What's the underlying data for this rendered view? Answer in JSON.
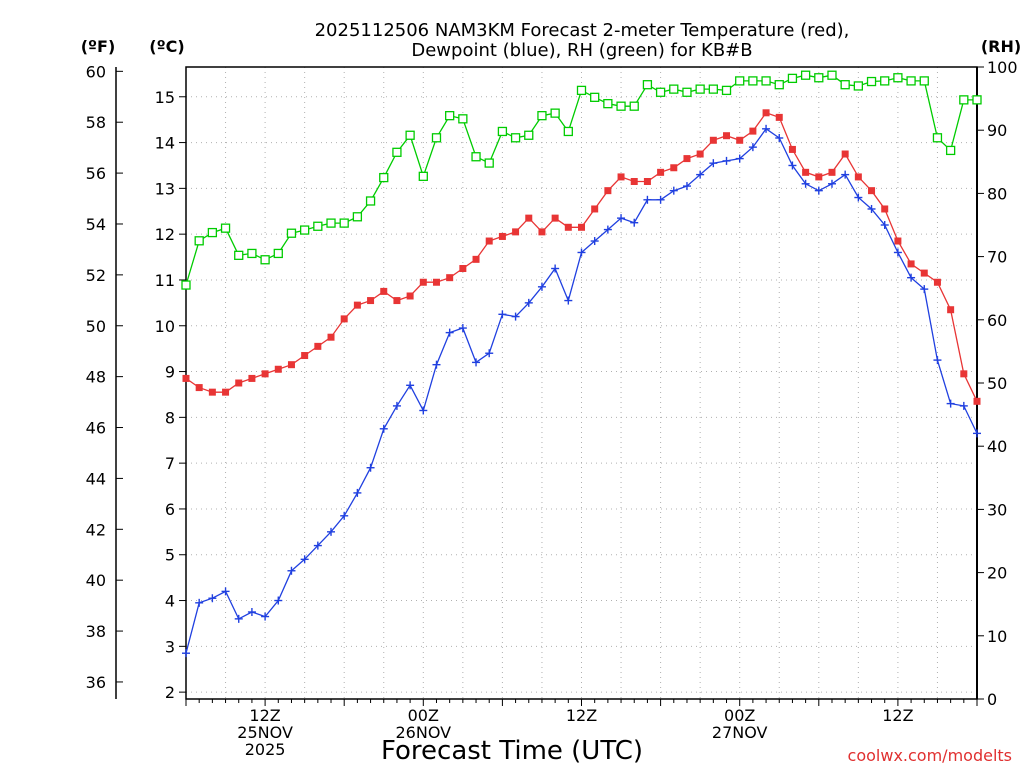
{
  "title_line1": "2025112506 NAM3KM Forecast 2-meter Temperature (red),",
  "title_line2": "Dewpoint (blue), RH (green) for KB#B",
  "unit_f": "(ºF)",
  "unit_c": "(ºC)",
  "unit_rh": "(RH)",
  "credit": "coolwx.com/modelts",
  "colors": {
    "temperature": "#e83535",
    "dewpoint": "#2040e0",
    "rh": "#00cc00",
    "grid": "#b0b0b0"
  },
  "chart_data": {
    "type": "line",
    "title": "2025112506 NAM3KM Forecast 2-meter Temperature (red), Dewpoint (blue), RH (green) for KB#B",
    "xlabel": "Forecast Time (UTC)",
    "ylabel_left_outer": "(ºF)",
    "ylabel_left_inner": "(ºC)",
    "ylabel_right": "(RH)",
    "xlim": [
      6,
      66
    ],
    "ylim_c": [
      1.85,
      15.65
    ],
    "ylim_f": [
      35.33,
      60.17
    ],
    "ylim_rh": [
      0,
      100
    ],
    "grid": true,
    "x_ticks": [
      {
        "x": 12,
        "lines": [
          "12Z",
          "25NOV",
          "2025"
        ]
      },
      {
        "x": 24,
        "lines": [
          "00Z",
          "26NOV"
        ]
      },
      {
        "x": 36,
        "lines": [
          "12Z"
        ]
      },
      {
        "x": 48,
        "lines": [
          "00Z",
          "27NOV"
        ]
      },
      {
        "x": 60,
        "lines": [
          "12Z"
        ]
      }
    ],
    "y_ticks_c": [
      2,
      3,
      4,
      5,
      6,
      7,
      8,
      9,
      10,
      11,
      12,
      13,
      14,
      15
    ],
    "y_ticks_f": [
      36,
      38,
      40,
      42,
      44,
      46,
      48,
      50,
      52,
      54,
      56,
      58,
      60
    ],
    "y_ticks_rh": [
      0,
      10,
      20,
      30,
      40,
      50,
      60,
      70,
      80,
      90,
      100
    ],
    "series": [
      {
        "name": "Temperature",
        "axis": "c",
        "color": "#e83535",
        "marker": "filled-square",
        "x": [
          6,
          7,
          8,
          9,
          10,
          11,
          12,
          13,
          14,
          15,
          16,
          17,
          18,
          19,
          20,
          21,
          22,
          23,
          24,
          25,
          26,
          27,
          28,
          29,
          30,
          31,
          32,
          33,
          34,
          35,
          36,
          37,
          38,
          39,
          40,
          41,
          42,
          43,
          44,
          45,
          46,
          47,
          48,
          49,
          50,
          51,
          52,
          53,
          54,
          55,
          56,
          57,
          58,
          59,
          60,
          61,
          62,
          63,
          64,
          65,
          66
        ],
        "values": [
          8.85,
          8.65,
          8.55,
          8.55,
          8.75,
          8.85,
          8.95,
          9.05,
          9.15,
          9.35,
          9.55,
          9.75,
          10.15,
          10.45,
          10.55,
          10.75,
          10.55,
          10.65,
          10.95,
          10.95,
          11.05,
          11.25,
          11.45,
          11.85,
          11.95,
          12.05,
          12.35,
          12.05,
          12.35,
          12.15,
          12.15,
          12.55,
          12.95,
          13.25,
          13.15,
          13.15,
          13.35,
          13.45,
          13.65,
          13.75,
          14.05,
          14.15,
          14.05,
          14.25,
          14.65,
          14.55,
          13.85,
          13.35,
          13.25,
          13.35,
          13.75,
          13.25,
          12.95,
          12.55,
          11.85,
          11.35,
          11.15,
          10.95,
          10.35,
          8.95,
          8.35
        ]
      },
      {
        "name": "Dewpoint",
        "axis": "c",
        "color": "#2040e0",
        "marker": "plus",
        "x": [
          6,
          7,
          8,
          9,
          10,
          11,
          12,
          13,
          14,
          15,
          16,
          17,
          18,
          19,
          20,
          21,
          22,
          23,
          24,
          25,
          26,
          27,
          28,
          29,
          30,
          31,
          32,
          33,
          34,
          35,
          36,
          37,
          38,
          39,
          40,
          41,
          42,
          43,
          44,
          45,
          46,
          47,
          48,
          49,
          50,
          51,
          52,
          53,
          54,
          55,
          56,
          57,
          58,
          59,
          60,
          61,
          62,
          63,
          64,
          65,
          66
        ],
        "values": [
          2.85,
          3.95,
          4.05,
          4.2,
          3.6,
          3.75,
          3.65,
          4.0,
          4.65,
          4.9,
          5.2,
          5.5,
          5.85,
          6.35,
          6.9,
          7.75,
          8.25,
          8.7,
          8.15,
          9.15,
          9.85,
          9.95,
          9.2,
          9.4,
          10.25,
          10.2,
          10.5,
          10.85,
          11.25,
          10.55,
          11.6,
          11.85,
          12.1,
          12.35,
          12.25,
          12.75,
          12.75,
          12.95,
          13.05,
          13.3,
          13.55,
          13.6,
          13.65,
          13.9,
          14.3,
          14.1,
          13.5,
          13.1,
          12.95,
          13.1,
          13.3,
          12.8,
          12.55,
          12.2,
          11.6,
          11.05,
          10.8,
          9.25,
          8.3,
          8.25,
          7.65
        ]
      },
      {
        "name": "RH",
        "axis": "rh",
        "color": "#00cc00",
        "marker": "open-square",
        "x": [
          6,
          7,
          8,
          9,
          10,
          11,
          12,
          13,
          14,
          15,
          16,
          17,
          18,
          19,
          20,
          21,
          22,
          23,
          24,
          25,
          26,
          27,
          28,
          29,
          30,
          31,
          32,
          33,
          34,
          35,
          36,
          37,
          38,
          39,
          40,
          41,
          42,
          43,
          44,
          45,
          46,
          47,
          48,
          49,
          50,
          51,
          52,
          53,
          54,
          55,
          56,
          57,
          58,
          59,
          60,
          61,
          62,
          63,
          64,
          65,
          66
        ],
        "values": [
          65.5,
          72.5,
          73.8,
          74.5,
          70.2,
          70.5,
          69.5,
          70.5,
          73.7,
          74.2,
          74.8,
          75.3,
          75.3,
          76.3,
          78.8,
          82.5,
          86.5,
          89.2,
          82.7,
          88.8,
          92.3,
          91.8,
          85.8,
          84.8,
          89.8,
          88.8,
          89.2,
          92.3,
          92.7,
          89.8,
          96.3,
          95.2,
          94.2,
          93.8,
          93.8,
          97.2,
          96.0,
          96.5,
          96.0,
          96.5,
          96.5,
          96.3,
          97.8,
          97.8,
          97.8,
          97.2,
          98.2,
          98.7,
          98.3,
          98.7,
          97.2,
          97.0,
          97.7,
          97.8,
          98.3,
          97.8,
          97.8,
          88.8,
          86.8,
          94.8,
          94.8
        ]
      }
    ]
  }
}
